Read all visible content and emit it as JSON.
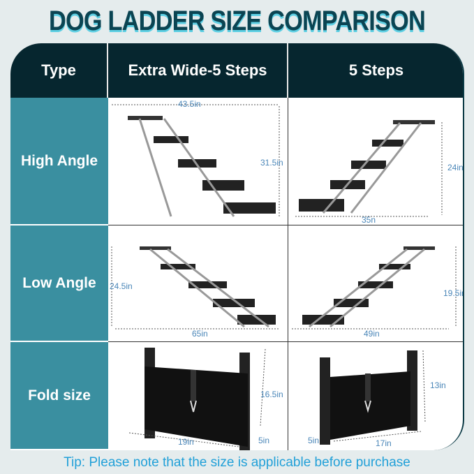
{
  "title": "DOG LADDER SIZE COMPARISON",
  "header": {
    "type": "Type",
    "col1": "Extra Wide-5 Steps",
    "col2": "5 Steps"
  },
  "rows": [
    {
      "label": "High Angle",
      "col1": {
        "width": "43.5in",
        "height": "31.5in"
      },
      "col2": {
        "width": "35n",
        "height": "24in"
      }
    },
    {
      "label": "Low Angle",
      "col1": {
        "width": "65in",
        "height": "24.5in"
      },
      "col2": {
        "width": "49in",
        "height": "19.5in"
      }
    },
    {
      "label": "Fold size",
      "col1": {
        "width": "19in",
        "height": "16.5in",
        "depth": "5in"
      },
      "col2": {
        "width": "17in",
        "height": "13in",
        "depth": "5in"
      }
    }
  ],
  "tip": "Tip: Please note that the size is applicable before purchase",
  "colors": {
    "header": "#06262f",
    "label_column": "#3a8fa0",
    "title": "#0b4452",
    "dimension": "#4a86b8",
    "tip": "#21a0d8"
  }
}
